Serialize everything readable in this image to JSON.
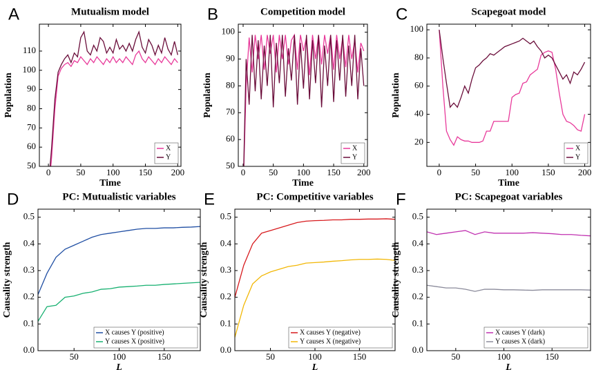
{
  "chart_data": [
    {
      "type": "line",
      "panel_label": "A",
      "title": "Mutualism model",
      "xlabel": "Time",
      "ylabel": "Population",
      "x": [
        0,
        5,
        10,
        15,
        20,
        25,
        30,
        35,
        40,
        45,
        50,
        55,
        60,
        65,
        70,
        75,
        80,
        85,
        90,
        95,
        100,
        105,
        110,
        115,
        120,
        125,
        130,
        135,
        140,
        145,
        150,
        155,
        160,
        165,
        170,
        175,
        180,
        185,
        190,
        195,
        200
      ],
      "series": [
        {
          "name": "X",
          "color": "#e8399a",
          "values": [
            35,
            55,
            80,
            97,
            101,
            103,
            104,
            102,
            105,
            104,
            107,
            105,
            103,
            106,
            104,
            107,
            105,
            103,
            106,
            104,
            107,
            104,
            106,
            104,
            107,
            105,
            103,
            108,
            110,
            106,
            104,
            107,
            105,
            103,
            106,
            104,
            107,
            105,
            103,
            106,
            104
          ]
        },
        {
          "name": "Y",
          "color": "#6a0d3a",
          "values": [
            40,
            60,
            85,
            99,
            103,
            106,
            108,
            104,
            109,
            107,
            117,
            120,
            110,
            108,
            113,
            110,
            117,
            115,
            109,
            112,
            109,
            116,
            111,
            113,
            110,
            114,
            110,
            116,
            120,
            112,
            109,
            116,
            113,
            108,
            113,
            109,
            117,
            111,
            108,
            115,
            108
          ]
        }
      ],
      "xlim": [
        -14,
        205
      ],
      "ylim": [
        50,
        124
      ],
      "xticks": [
        0,
        50,
        100,
        150,
        200
      ],
      "yticks": [
        50,
        60,
        70,
        80,
        90,
        100,
        110
      ],
      "legend": "lower right"
    },
    {
      "type": "line",
      "panel_label": "B",
      "title": "Competition model",
      "xlabel": "Time",
      "ylabel": "Population",
      "x": [
        0,
        5,
        10,
        15,
        20,
        25,
        30,
        35,
        40,
        45,
        50,
        55,
        60,
        65,
        70,
        75,
        80,
        85,
        90,
        95,
        100,
        105,
        110,
        115,
        120,
        125,
        130,
        135,
        140,
        145,
        150,
        155,
        160,
        165,
        170,
        175,
        180,
        185,
        190,
        195,
        200
      ],
      "series": [
        {
          "name": "X",
          "color": "#e8399a",
          "values": [
            40,
            80,
            98,
            85,
            99,
            90,
            99,
            86,
            99,
            92,
            99,
            85,
            99,
            90,
            99,
            88,
            97,
            99,
            86,
            99,
            93,
            98,
            84,
            99,
            90,
            99,
            88,
            99,
            92,
            99,
            86,
            99,
            90,
            98,
            87,
            99,
            90,
            97,
            85,
            96,
            93
          ]
        },
        {
          "name": "Y",
          "color": "#6a0d3a",
          "values": [
            40,
            90,
            73,
            99,
            78,
            97,
            75,
            95,
            80,
            99,
            72,
            96,
            81,
            99,
            76,
            94,
            82,
            99,
            73,
            96,
            79,
            99,
            75,
            97,
            81,
            99,
            72,
            95,
            80,
            99,
            74,
            97,
            82,
            99,
            76,
            95,
            80,
            99,
            75,
            94,
            80
          ]
        }
      ],
      "xlim": [
        -8,
        206
      ],
      "ylim": [
        50,
        103
      ],
      "xticks": [
        0,
        50,
        100,
        150,
        200
      ],
      "yticks": [
        50,
        60,
        70,
        80,
        90,
        100
      ],
      "legend": "lower right"
    },
    {
      "type": "line",
      "panel_label": "C",
      "title": "Scapegoat model",
      "xlabel": "Time",
      "ylabel": "Population",
      "x": [
        0,
        5,
        10,
        15,
        20,
        25,
        30,
        35,
        40,
        45,
        50,
        55,
        60,
        65,
        70,
        75,
        80,
        85,
        90,
        95,
        100,
        105,
        110,
        115,
        120,
        125,
        130,
        135,
        140,
        145,
        150,
        155,
        160,
        165,
        170,
        175,
        180,
        185,
        190,
        195,
        200
      ],
      "series": [
        {
          "name": "X",
          "color": "#e8399a",
          "values": [
            100,
            60,
            28,
            22,
            18,
            24,
            22,
            21,
            21,
            20,
            20,
            20,
            21,
            28,
            28,
            35,
            35,
            35,
            35,
            35,
            52,
            54,
            55,
            62,
            63,
            68,
            70,
            72,
            82,
            84,
            85,
            84,
            72,
            55,
            40,
            35,
            34,
            32,
            29,
            28,
            40
          ]
        },
        {
          "name": "Y",
          "color": "#6a0d3a",
          "values": [
            100,
            80,
            62,
            45,
            48,
            45,
            52,
            60,
            55,
            65,
            73,
            75,
            78,
            80,
            83,
            82,
            84,
            86,
            88,
            89,
            90,
            91,
            92,
            94,
            92,
            90,
            92,
            88,
            85,
            80,
            82,
            80,
            75,
            70,
            65,
            68,
            62,
            70,
            68,
            72,
            77
          ]
        }
      ],
      "xlim": [
        -17,
        208
      ],
      "ylim": [
        3,
        104
      ],
      "xticks": [
        0,
        50,
        100,
        150,
        200
      ],
      "yticks": [
        20,
        40,
        60,
        80,
        100
      ],
      "legend": "lower right"
    },
    {
      "type": "line",
      "panel_label": "D",
      "title": "PC: Mutualistic variables",
      "xlabel": "L",
      "ylabel": "Causality strength",
      "x": [
        10,
        20,
        30,
        40,
        50,
        60,
        70,
        80,
        90,
        100,
        110,
        120,
        130,
        140,
        150,
        160,
        170,
        180,
        190
      ],
      "series": [
        {
          "name": "X causes Y (positive)",
          "color": "#1f4ea3",
          "values": [
            0.21,
            0.29,
            0.35,
            0.38,
            0.395,
            0.41,
            0.425,
            0.435,
            0.44,
            0.445,
            0.45,
            0.455,
            0.458,
            0.458,
            0.46,
            0.46,
            0.462,
            0.463,
            0.465
          ]
        },
        {
          "name": "Y causes X (positive)",
          "color": "#16b070",
          "values": [
            0.11,
            0.165,
            0.17,
            0.2,
            0.205,
            0.215,
            0.22,
            0.23,
            0.232,
            0.238,
            0.24,
            0.242,
            0.245,
            0.245,
            0.248,
            0.25,
            0.252,
            0.254,
            0.256
          ]
        }
      ],
      "xlim": [
        10,
        190
      ],
      "ylim": [
        0,
        0.53
      ],
      "xticks": [
        50,
        100,
        150
      ],
      "yticks": [
        {
          "value": 0,
          "label": "0.0"
        },
        0.1,
        0.2,
        0.3,
        0.4,
        0.5
      ],
      "legend": "lower right"
    },
    {
      "type": "line",
      "panel_label": "E",
      "title": "PC: Competitive variables",
      "xlabel": "L",
      "ylabel": "Causality strength",
      "x": [
        10,
        20,
        30,
        40,
        50,
        60,
        70,
        80,
        90,
        100,
        110,
        120,
        130,
        140,
        150,
        160,
        170,
        180,
        190
      ],
      "series": [
        {
          "name": "X causes Y (negative)",
          "color": "#d7191c",
          "values": [
            0.2,
            0.32,
            0.4,
            0.44,
            0.45,
            0.46,
            0.47,
            0.48,
            0.485,
            0.487,
            0.488,
            0.49,
            0.49,
            0.492,
            0.492,
            0.493,
            0.493,
            0.494,
            0.492
          ]
        },
        {
          "name": "Y causes X (negative)",
          "color": "#f2b705",
          "values": [
            0.05,
            0.17,
            0.25,
            0.28,
            0.295,
            0.305,
            0.315,
            0.32,
            0.328,
            0.33,
            0.332,
            0.335,
            0.337,
            0.34,
            0.342,
            0.342,
            0.343,
            0.342,
            0.338
          ]
        }
      ],
      "xlim": [
        10,
        190
      ],
      "ylim": [
        0,
        0.53
      ],
      "xticks": [
        50,
        100,
        150
      ],
      "yticks": [
        {
          "value": 0,
          "label": "0.0"
        },
        0.1,
        0.2,
        0.3,
        0.4,
        0.5
      ],
      "legend": "lower right"
    },
    {
      "type": "line",
      "panel_label": "F",
      "title": "PC: Scapegoat variables",
      "xlabel": "L",
      "ylabel": "Causality strength",
      "x": [
        20,
        30,
        40,
        50,
        60,
        70,
        80,
        90,
        100,
        110,
        120,
        130,
        140,
        150,
        160,
        170,
        180,
        190
      ],
      "series": [
        {
          "name": "X causes Y (dark)",
          "color": "#c030b0",
          "values": [
            0.445,
            0.435,
            0.44,
            0.445,
            0.45,
            0.435,
            0.445,
            0.44,
            0.44,
            0.44,
            0.44,
            0.442,
            0.44,
            0.438,
            0.435,
            0.435,
            0.432,
            0.43
          ]
        },
        {
          "name": "Y causes X (dark)",
          "color": "#8a8a9a",
          "values": [
            0.245,
            0.24,
            0.235,
            0.235,
            0.23,
            0.222,
            0.23,
            0.23,
            0.228,
            0.228,
            0.227,
            0.226,
            0.228,
            0.228,
            0.228,
            0.228,
            0.228,
            0.227
          ]
        }
      ],
      "xlim": [
        20,
        190
      ],
      "ylim": [
        0,
        0.53
      ],
      "xticks": [
        50,
        100,
        150
      ],
      "yticks": [
        {
          "value": 0,
          "label": "0.0"
        },
        0.1,
        0.2,
        0.3,
        0.4,
        0.5
      ],
      "legend": "lower right"
    }
  ]
}
